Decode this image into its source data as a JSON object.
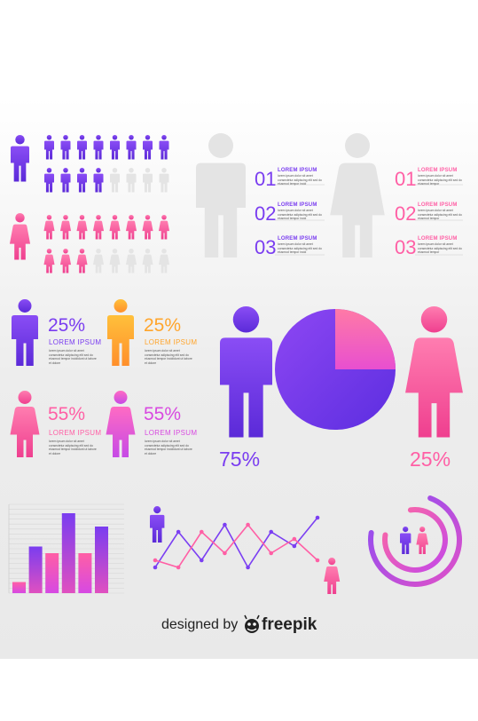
{
  "colors": {
    "purple": "#7b3ff2",
    "violet": "#5b2ad8",
    "pink": "#ff5fa5",
    "magenta": "#d84ae0",
    "orange": "#ffa52c",
    "gray": "#e6e6e6"
  },
  "icons": [
    "male-person-icon",
    "female-person-icon",
    "freepik-logo-icon"
  ],
  "person_grid": {
    "male_colored": 12,
    "male_total": 16,
    "female_colored": 11,
    "female_total": 16
  },
  "numbered_list": {
    "male_side": [
      {
        "number": "01",
        "label": "LOREM IPSUM"
      },
      {
        "number": "02",
        "label": "LOREM IPSUM"
      },
      {
        "number": "03",
        "label": "LOREM IPSUM"
      }
    ],
    "female_side": [
      {
        "number": "01",
        "label": "LOREM IPSUM"
      },
      {
        "number": "02",
        "label": "LOREM IPSUM"
      },
      {
        "number": "03",
        "label": "LOREM IPSUM"
      }
    ],
    "male_fill_level": 0.42,
    "female_fill_level": 0.42
  },
  "stats": [
    {
      "percent": "25%",
      "label": "LOREM IPSUM"
    },
    {
      "percent": "25%",
      "label": "LOREM IPSUM"
    },
    {
      "percent": "55%",
      "label": "LOREM IPSUM"
    },
    {
      "percent": "55%",
      "label": "LOREM IPSUM"
    }
  ],
  "pie": {
    "male_percent": "75%",
    "female_percent": "25%",
    "male_share": 0.75,
    "female_share": 0.25
  },
  "bar_chart": {
    "values": [
      5,
      21,
      18,
      36,
      18,
      30
    ],
    "ymax": 40
  },
  "line_chart": {
    "male_series": [
      2,
      7,
      3,
      8,
      2,
      7,
      5,
      9
    ],
    "female_series": [
      3,
      2,
      7,
      4,
      8,
      4,
      6,
      3
    ]
  },
  "ring_chart": {
    "outer_level": 0.72,
    "inner_level": 0.8
  },
  "footer": {
    "designed_by": "designed by",
    "brand": "freepik"
  }
}
